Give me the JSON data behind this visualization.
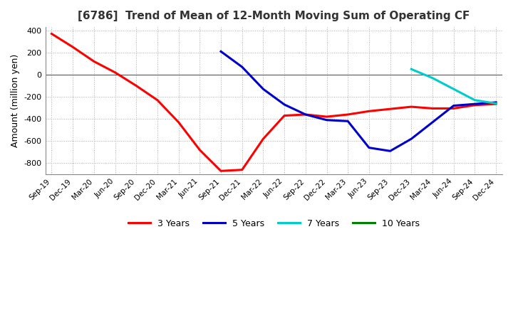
{
  "title": "[6786]  Trend of Mean of 12-Month Moving Sum of Operating CF",
  "ylabel": "Amount (million yen)",
  "ylim": [
    -900,
    430
  ],
  "yticks": [
    400,
    200,
    0,
    -200,
    -400,
    -600,
    -800
  ],
  "background_color": "#ffffff",
  "grid_color": "#aaaaaa",
  "legend": [
    "3 Years",
    "5 Years",
    "7 Years",
    "10 Years"
  ],
  "legend_colors": [
    "#ff0000",
    "#0000cd",
    "#00cccc",
    "#008000"
  ],
  "x_labels": [
    "Sep-19",
    "Dec-19",
    "Mar-20",
    "Jun-20",
    "Sep-20",
    "Dec-20",
    "Mar-21",
    "Jun-21",
    "Sep-21",
    "Dec-21",
    "Mar-22",
    "Jun-22",
    "Sep-22",
    "Dec-22",
    "Mar-23",
    "Jun-23",
    "Sep-23",
    "Dec-23",
    "Mar-24",
    "Jun-24",
    "Sep-24",
    "Dec-24"
  ],
  "series_3y": [
    370,
    250,
    120,
    20,
    -100,
    -230,
    -430,
    -680,
    -870,
    -860,
    -580,
    -370,
    -360,
    -380,
    -360,
    -330,
    -310,
    -290,
    -305,
    -305,
    -275,
    -265
  ],
  "series_5y": [
    null,
    null,
    null,
    null,
    null,
    null,
    null,
    null,
    210,
    70,
    -130,
    -270,
    -360,
    -410,
    -420,
    -660,
    -690,
    -580,
    -430,
    -280,
    -265,
    -250
  ],
  "series_7y": [
    null,
    null,
    null,
    null,
    null,
    null,
    null,
    null,
    null,
    null,
    null,
    null,
    null,
    null,
    null,
    null,
    null,
    50,
    -30,
    -130,
    -230,
    -260
  ],
  "series_10y": [
    null,
    null,
    null,
    null,
    null,
    null,
    null,
    null,
    null,
    null,
    null,
    null,
    null,
    null,
    null,
    null,
    null,
    null,
    null,
    null,
    null,
    null
  ]
}
